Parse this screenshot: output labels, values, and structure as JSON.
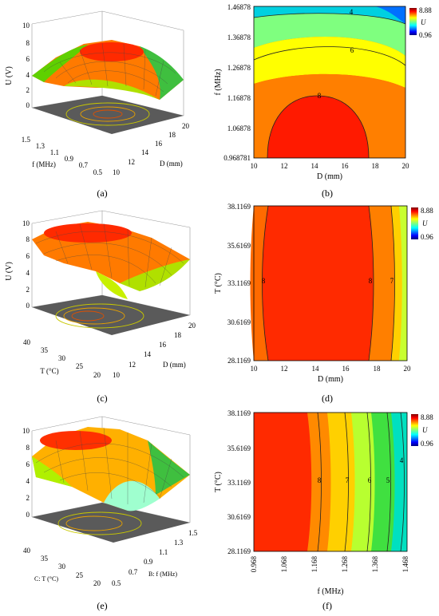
{
  "colors": {
    "jet": [
      "#00007f",
      "#0000ff",
      "#007fff",
      "#00ffff",
      "#7fff7f",
      "#ffff00",
      "#ff7f00",
      "#ff0000",
      "#7f0000"
    ],
    "floor": "#5a5a5a",
    "contour": "#222222"
  },
  "chart_data": [
    {
      "id": "a",
      "type": "surface3d",
      "caption": "(a)",
      "zlabel": "U (V)",
      "zticks": [
        "0",
        "2",
        "4",
        "6",
        "8",
        "10"
      ],
      "leftlabel": "f (MHz)",
      "leftticks": [
        "1.5",
        "1.3",
        "1.1",
        "0.9",
        "0.7",
        "0.5"
      ],
      "rightlabel": "D (mm)",
      "rightticks": [
        "10",
        "12",
        "14",
        "16",
        "18",
        "20"
      ],
      "zlim": [
        0,
        10
      ],
      "peak": 8.9
    },
    {
      "id": "b",
      "type": "heatmap",
      "caption": "(b)",
      "xlabel": "D (mm)",
      "xticks": [
        "10",
        "12",
        "14",
        "16",
        "18",
        "20"
      ],
      "ylabel": "f (MHz)",
      "yticks": [
        "1.46878",
        "1.36878",
        "1.26878",
        "1.16878",
        "1.06878",
        "0.968781"
      ],
      "xlim": [
        10,
        20
      ],
      "ylim": [
        0.968781,
        1.46878
      ],
      "colorbar": {
        "max": "8.88",
        "min": "0.96",
        "label": "U"
      },
      "contour_labels": [
        "4",
        "6",
        "8"
      ]
    },
    {
      "id": "c",
      "type": "surface3d",
      "caption": "(c)",
      "zlabel": "U (V)",
      "zticks": [
        "0",
        "2",
        "4",
        "6",
        "8",
        "10"
      ],
      "leftlabel": "T (°C)",
      "leftticks": [
        "40",
        "35",
        "30",
        "25",
        "20"
      ],
      "rightlabel": "D (mm)",
      "rightticks": [
        "10",
        "12",
        "14",
        "16",
        "18",
        "20"
      ],
      "zlim": [
        0,
        10
      ],
      "peak": 8.9
    },
    {
      "id": "d",
      "type": "heatmap",
      "caption": "(d)",
      "xlabel": "D (mm)",
      "xticks": [
        "10",
        "12",
        "14",
        "16",
        "18",
        "20"
      ],
      "ylabel": "T (°C)",
      "yticks": [
        "38.1169",
        "35.6169",
        "33.1169",
        "30.6169",
        "28.1169"
      ],
      "xlim": [
        10,
        20
      ],
      "ylim": [
        28.1169,
        38.1169
      ],
      "colorbar": {
        "max": "8.88",
        "min": "0.96",
        "label": "U"
      },
      "contour_labels": [
        "8",
        "8",
        "7"
      ]
    },
    {
      "id": "e",
      "type": "surface3d",
      "caption": "(e)",
      "zlabel": "",
      "zticks": [
        "0",
        "2",
        "4",
        "6",
        "8",
        "10"
      ],
      "leftlabel": "C: T (°C)",
      "leftticks": [
        "40",
        "35",
        "30",
        "25",
        "20"
      ],
      "rightlabel": "B: f (MHz)",
      "rightticks": [
        "0.5",
        "0.7",
        "0.9",
        "1.1",
        "1.3",
        "1.5"
      ],
      "zlim": [
        0,
        10
      ],
      "peak": 8.9
    },
    {
      "id": "f",
      "type": "heatmap",
      "caption": "(f)",
      "xlabel": "f (MHz)",
      "xticks": [
        "0.968",
        "1.068",
        "1.168",
        "1.268",
        "1.368",
        "1.468"
      ],
      "ylabel": "T (°C)",
      "yticks": [
        "38.1169",
        "35.6169",
        "33.1169",
        "30.6169",
        "28.1169"
      ],
      "xlim": [
        0.968,
        1.468
      ],
      "ylim": [
        28.1169,
        38.1169
      ],
      "colorbar": {
        "max": "8.88",
        "min": "0.96",
        "label": "U"
      },
      "contour_labels": [
        "8",
        "7",
        "6",
        "5",
        "4"
      ]
    }
  ]
}
